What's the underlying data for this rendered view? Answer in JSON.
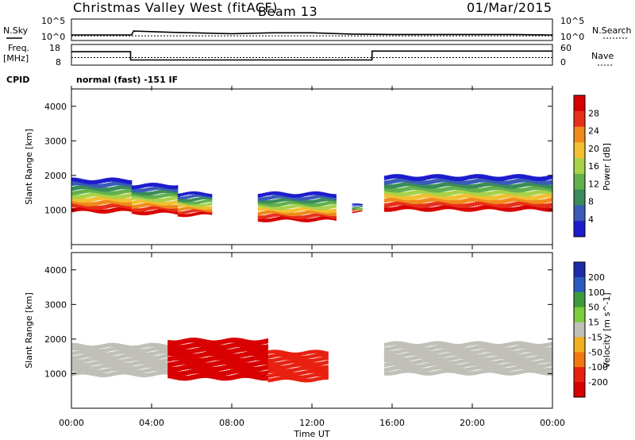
{
  "header": {
    "site": "Christmas Valley West (fitACF)",
    "beam": "Beam 13",
    "date": "01/Mar/2015"
  },
  "labels": {
    "nsky": "N.Sky",
    "nsearch": "N.Search",
    "freq_line1": "Freq.",
    "freq_line2": "[MHz]",
    "nave": "Nave",
    "cpid": "CPID",
    "cpid_value": "normal (fast) -151 IF"
  },
  "chart_data": [
    {
      "type": "line",
      "name": "noise",
      "left_ticks": [
        "10^5",
        "10^0"
      ],
      "right_ticks": [
        "10^5",
        "10^0"
      ],
      "x": [
        0,
        1,
        2,
        3,
        3.1,
        5,
        8,
        10,
        12,
        14,
        16,
        18,
        20,
        22,
        24
      ],
      "sky_log10": [
        1.3,
        1.3,
        1.3,
        1.3,
        2.2,
        1.9,
        1.6,
        1.8,
        1.8,
        1.5,
        1.4,
        1.4,
        1.4,
        1.4,
        1.3
      ],
      "search_log10": [
        1.1,
        1.1,
        1.1,
        1.1,
        1.1,
        1.1,
        1.1,
        1.1,
        1.1,
        1.1,
        1.1,
        1.1,
        1.1,
        1.1,
        1.1
      ]
    },
    {
      "type": "line",
      "name": "frequency",
      "left_ticks": [
        "18",
        "8"
      ],
      "right_ticks": [
        "60",
        "0"
      ],
      "x": [
        0,
        2.95,
        2.95,
        15.0,
        15.0,
        24
      ],
      "freq_mhz": [
        14.5,
        14.5,
        10.5,
        10.5,
        14.8,
        14.8
      ],
      "nave": [
        22,
        22,
        22,
        22,
        22,
        22
      ]
    },
    {
      "type": "heatmap",
      "name": "power",
      "xlim": [
        0,
        24
      ],
      "ylim": [
        0,
        4500
      ],
      "ylabel": "Slant Range [km]",
      "yticks": [
        "1000",
        "2000",
        "3000",
        "4000"
      ],
      "colorbar_label": "Power [dB]",
      "colorbar_ticks": [
        "4",
        "8",
        "12",
        "16",
        "20",
        "24",
        "28"
      ],
      "colors": [
        "#1c1ccc",
        "#3a5cb8",
        "#3a8c5a",
        "#62b04e",
        "#a8d24a",
        "#f0c030",
        "#f08a1c",
        "#e83018",
        "#d80000"
      ],
      "bands": [
        {
          "x0": 0,
          "x1": 3.0,
          "r0": 950,
          "r1": 1900
        },
        {
          "x0": 3.0,
          "x1": 5.3,
          "r0": 900,
          "r1": 1750
        },
        {
          "x0": 5.3,
          "x1": 7.0,
          "r0": 850,
          "r1": 1500
        },
        {
          "x0": 9.3,
          "x1": 13.2,
          "r0": 700,
          "r1": 1500
        },
        {
          "x0": 14.0,
          "x1": 14.5,
          "r0": 950,
          "r1": 1150
        },
        {
          "x0": 15.6,
          "x1": 24,
          "r0": 1000,
          "r1": 2000
        }
      ]
    },
    {
      "type": "heatmap",
      "name": "velocity",
      "xlim": [
        0,
        24
      ],
      "ylim": [
        0,
        4500
      ],
      "ylabel": "Slant Range [km]",
      "yticks": [
        "1000",
        "2000",
        "3000",
        "4000"
      ],
      "xlabel": "Time UT",
      "xticks": [
        "00:00",
        "04:00",
        "08:00",
        "12:00",
        "16:00",
        "20:00",
        "00:00"
      ],
      "colorbar_label": "Velocity [m s^-1]",
      "colorbar_ticks": [
        "200",
        "100",
        "50",
        "15",
        "-15",
        "-50",
        "-100",
        "-200"
      ],
      "colors": [
        "#1c2ca8",
        "#2a5cc0",
        "#3c9a3c",
        "#7ccc3c",
        "#c0c0b8",
        "#f0b020",
        "#f07a10",
        "#e82010",
        "#d80000"
      ],
      "bands": [
        {
          "x0": 0,
          "x1": 4.8,
          "r0": 950,
          "r1": 1850,
          "v": 0
        },
        {
          "x0": 4.8,
          "x1": 9.8,
          "r0": 850,
          "r1": 2000,
          "v": -200
        },
        {
          "x0": 9.8,
          "x1": 12.8,
          "r0": 800,
          "r1": 1650,
          "v": -100
        },
        {
          "x0": 15.6,
          "x1": 24,
          "r0": 1000,
          "r1": 1900,
          "v": 0
        }
      ]
    }
  ]
}
